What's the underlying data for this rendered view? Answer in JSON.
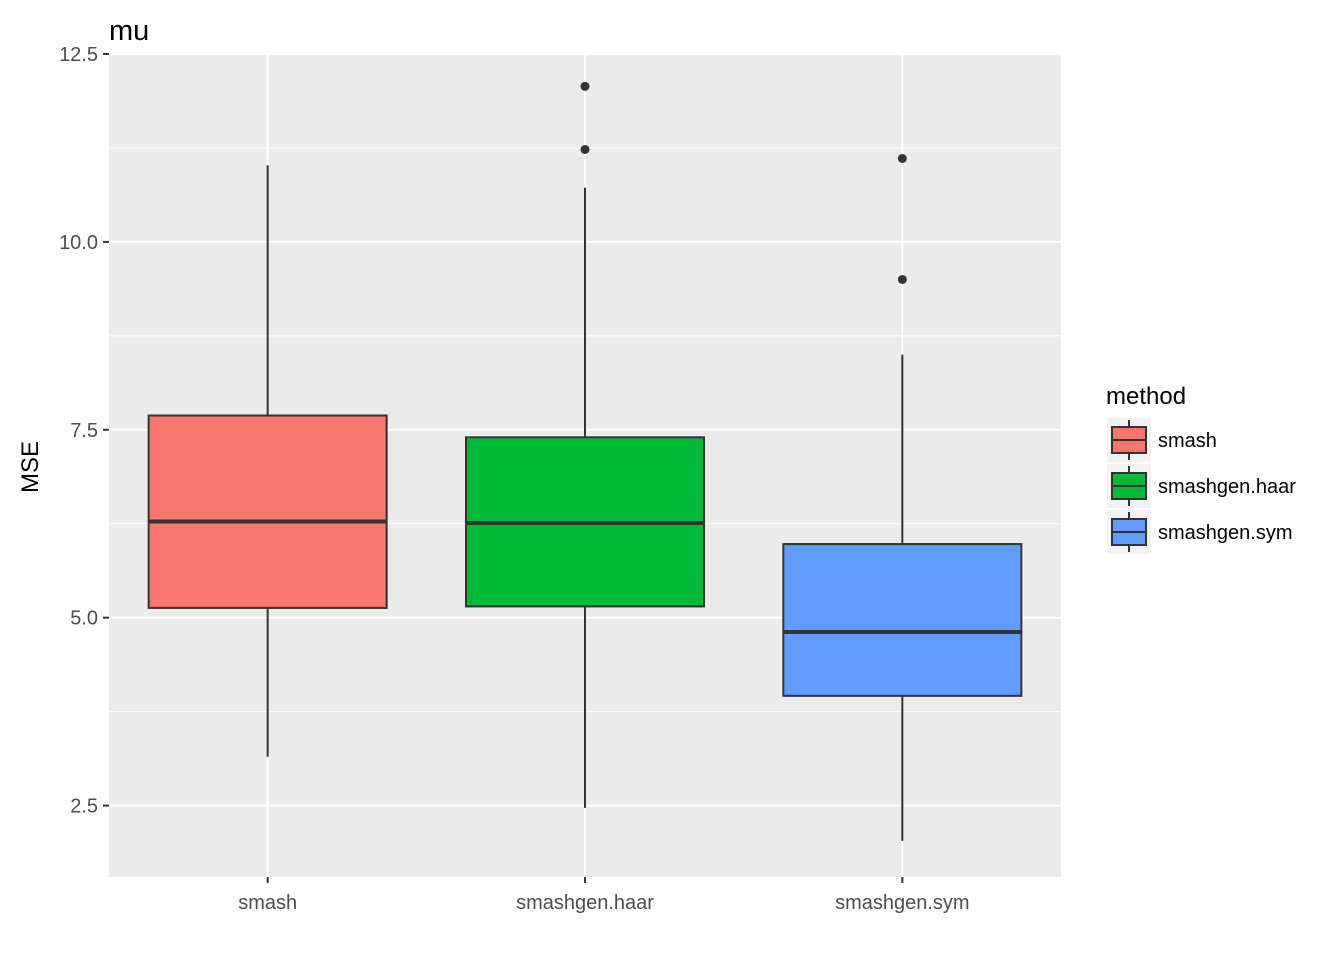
{
  "chart_data": {
    "type": "boxplot",
    "title": "mu",
    "xlabel": "",
    "ylabel": "MSE",
    "ylim": [
      1.55,
      12.5
    ],
    "yticks": [
      2.5,
      5.0,
      7.5,
      10.0,
      12.5
    ],
    "ytick_labels": [
      "2.5",
      "5.0",
      "7.5",
      "10.0",
      "12.5"
    ],
    "categories": [
      "smash",
      "smashgen.haar",
      "smashgen.sym"
    ],
    "grid": true,
    "legend": {
      "title": "method",
      "position": "right",
      "entries": [
        "smash",
        "smashgen.haar",
        "smashgen.sym"
      ]
    },
    "series": [
      {
        "name": "smash",
        "color": "#F8766D",
        "min": 3.15,
        "q1": 5.13,
        "median": 6.28,
        "q3": 7.69,
        "max": 11.02,
        "outliers": []
      },
      {
        "name": "smashgen.haar",
        "color": "#00BA38",
        "min": 2.47,
        "q1": 5.15,
        "median": 6.26,
        "q3": 7.4,
        "max": 10.72,
        "outliers": [
          11.23,
          12.07
        ]
      },
      {
        "name": "smashgen.sym",
        "color": "#619CFF",
        "min": 2.03,
        "q1": 3.96,
        "median": 4.81,
        "q3": 5.98,
        "max": 8.5,
        "outliers": [
          9.5,
          11.11
        ]
      }
    ]
  }
}
